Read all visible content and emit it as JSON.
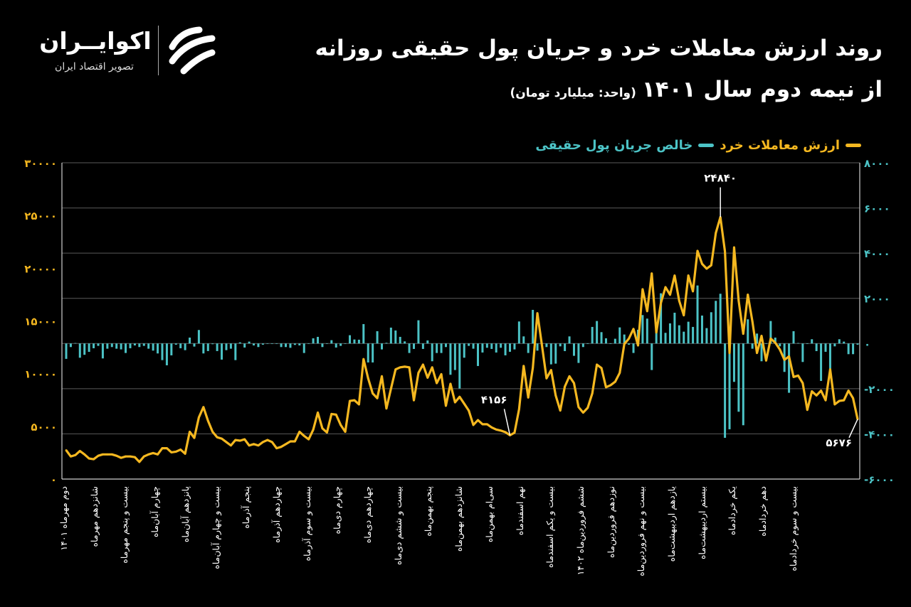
{
  "header": {
    "title_line1": "روند ارزش معاملات خرد و جریان پول حقیقی روزانه",
    "title_line2": "از نیمه دوم سال ۱۴۰۱",
    "unit": "(واحد: میلیارد تومان)"
  },
  "logo": {
    "name": "اکوایــران",
    "tagline": "تصویر اقتصاد ایران"
  },
  "colors": {
    "retail_value": "#f5b820",
    "net_flow": "#4cc3c6",
    "background": "#000000",
    "grid": "#5a5a5a"
  },
  "chart_data": {
    "type": "line+bar",
    "legend": {
      "position": "top-right",
      "items": [
        "ارزش معاملات خرد",
        "خالص جریان پول حقیقی"
      ]
    },
    "grid": true,
    "left_axis": {
      "range": [
        0,
        30000
      ],
      "ticks": [
        0,
        5000,
        10000,
        15000,
        20000,
        25000,
        30000
      ],
      "tick_labels": [
        "۰",
        "۵۰۰۰",
        "۱۰۰۰۰",
        "۱۵۰۰۰",
        "۲۰۰۰۰",
        "۲۵۰۰۰",
        "۳۰۰۰۰"
      ]
    },
    "right_axis": {
      "range": [
        -6000,
        8000
      ],
      "ticks": [
        -6000,
        -4000,
        -2000,
        0,
        2000,
        4000,
        6000,
        8000
      ],
      "tick_labels": [
        "-۶۰۰۰",
        "-۴۰۰۰",
        "-۲۰۰۰",
        "۰",
        "۲۰۰۰",
        "۴۰۰۰",
        "۶۰۰۰",
        "۸۰۰۰"
      ]
    },
    "x_tick_labels": [
      "دوم مهرماه ۱۴۰۱",
      "شانزدهم مهرماه",
      "بیست و پنجم مهرماه",
      "چهارم آبان‌ماه",
      "پانزدهم آبان‌ماه",
      "بیست و چهارم آبان‌ماه",
      "پنجم آذرماه",
      "چهاردهم آذرماه",
      "بیست و سوم آذرماه",
      "چهارم دی‌ماه",
      "چهاردهم دی‌ماه",
      "بیست و ششم دی‌ماه",
      "پنجم بهمن‌ماه",
      "شانزدهم بهمن‌ماه",
      "سی‌ام بهمن‌ماه",
      "نهم اسفندماه",
      "بیست و یکم اسفندماه",
      "ششم فروردین‌ماه ۱۴۰۲",
      "نوزدهم فروردین‌ماه",
      "بیست و نهم فروردین‌ماه",
      "یازدهم اردیبهشت‌ماه",
      "بیستم اردیبهشت‌ماه",
      "یکم خردادماه",
      "دهم خردادماه",
      "بیست و سوم خردادماه"
    ],
    "series": [
      {
        "name": "ارزش معاملات خرد",
        "type": "line",
        "axis": "left",
        "values": [
          2730,
          2145,
          2275,
          2665,
          2340,
          1950,
          1885,
          2210,
          2340,
          2340,
          2340,
          2210,
          2015,
          2145,
          2145,
          2080,
          1625,
          2145,
          2340,
          2470,
          2340,
          2925,
          2925,
          2535,
          2600,
          2795,
          2405,
          4485,
          3900,
          5850,
          6825,
          5525,
          4485,
          3965,
          3835,
          3510,
          3185,
          3705,
          3640,
          3770,
          3185,
          3315,
          3185,
          3510,
          3705,
          3510,
          2925,
          3055,
          3315,
          3575,
          3575,
          4485,
          4095,
          3770,
          4680,
          6305,
          4810,
          4420,
          6175,
          6110,
          5135,
          4485,
          7410,
          7475,
          7085,
          11375,
          9555,
          8125,
          7670,
          9750,
          6695,
          8580,
          10400,
          10595,
          10660,
          10595,
          7475,
          10075,
          10855,
          9620,
          10595,
          9100,
          9945,
          6955,
          9035,
          7280,
          7800,
          7150,
          6500,
          5135,
          5590,
          5200,
          5200,
          4900,
          4700,
          4600,
          4450,
          4156,
          4400,
          6630,
          10725,
          7735,
          10530,
          15730,
          12675,
          9555,
          10335,
          7930,
          6500,
          8775,
          9750,
          9100,
          6825,
          6305,
          6760,
          8125,
          10855,
          10530,
          8710,
          8905,
          9230,
          10075,
          12805,
          13325,
          14235,
          12675,
          18005,
          15925,
          19500,
          13910,
          16705,
          18200,
          17485,
          19305,
          16900,
          15535,
          19305,
          17810,
          21645,
          20410,
          19955,
          20280,
          23335,
          24840,
          21580,
          11960,
          21970,
          16900,
          13780,
          17485,
          14950,
          11960,
          13585,
          11245,
          13325,
          12935,
          12285,
          11310,
          11635,
          9685,
          9815,
          9100,
          6565,
          8320,
          7930,
          8385,
          7475,
          10400,
          7085,
          7410,
          7475,
          8385,
          7670,
          5676
        ]
      },
      {
        "name": "خالص جریان پول حقیقی",
        "type": "bar",
        "axis": "right",
        "values": [
          -680,
          -157,
          20,
          -630,
          -500,
          -370,
          -210,
          -105,
          -660,
          -230,
          -157,
          -230,
          -260,
          -420,
          -210,
          -85,
          -157,
          -105,
          -230,
          -315,
          -440,
          -735,
          -965,
          -525,
          -52,
          -210,
          -295,
          262,
          -136,
          598,
          -440,
          -335,
          -30,
          -335,
          -713,
          -295,
          -230,
          -735,
          52,
          -178,
          84,
          -84,
          -157,
          -52,
          0,
          -20,
          -20,
          -157,
          -157,
          -190,
          -63,
          -84,
          -420,
          0,
          230,
          294,
          -157,
          0,
          147,
          -178,
          -105,
          0,
          367,
          178,
          168,
          860,
          -839,
          -839,
          545,
          -262,
          31,
          703,
          577,
          294,
          94,
          -420,
          -241,
          1028,
          -241,
          136,
          -786,
          -420,
          -420,
          -157,
          -1384,
          -1174,
          -1992,
          -629,
          -105,
          -230,
          -996,
          -399,
          -189,
          -241,
          -399,
          -189,
          -524,
          -367,
          -262,
          975,
          315,
          -419,
          1489,
          -315,
          -21,
          -157,
          -923,
          -891,
          -126,
          -336,
          315,
          -545,
          -860,
          -157,
          -21,
          734,
          996,
          503,
          231,
          -21,
          210,
          713,
          398,
          -52,
          -419,
          608,
          1258,
          1101,
          -1174,
          577,
          2223,
          472,
          891,
          1363,
          807,
          524,
          965,
          734,
          2569,
          1237,
          682,
          1384,
          1888,
          2202,
          -4174,
          -3796,
          -1699,
          -3020,
          -3618,
          1070,
          -231,
          440,
          -786,
          0,
          996,
          262,
          -126,
          -1258,
          -2181,
          545,
          21,
          -818,
          -21,
          189,
          -336,
          -1657,
          -367,
          -1153,
          -126,
          189,
          84,
          -472,
          -472,
          -52
        ]
      }
    ],
    "annotations": [
      {
        "index": 97,
        "value": 4156,
        "label": "۴۱۵۶"
      },
      {
        "index": 143,
        "value": 24840,
        "label": "۲۴۸۴۰"
      },
      {
        "index": 173,
        "value": 5676,
        "label": "۵۶۷۶"
      }
    ]
  }
}
